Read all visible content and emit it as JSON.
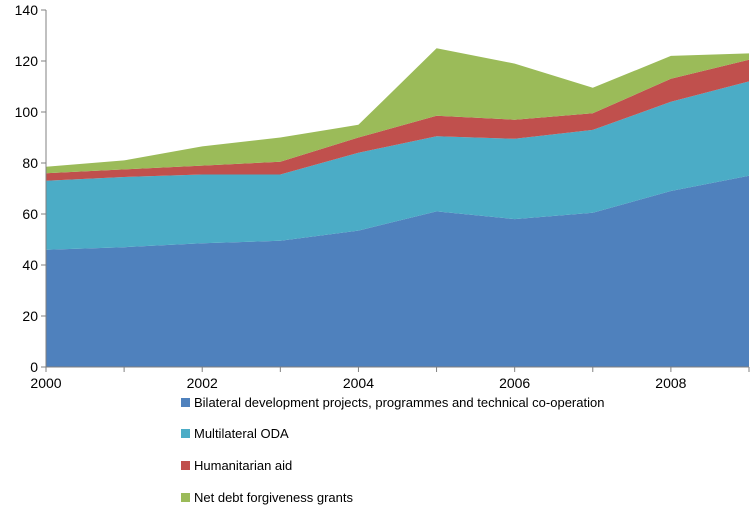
{
  "chart_data": {
    "type": "area",
    "stacked": true,
    "x": [
      2000,
      2001,
      2002,
      2003,
      2004,
      2005,
      2006,
      2007,
      2008,
      2009
    ],
    "xticks": [
      "2000",
      "2002",
      "2004",
      "2006",
      "2008"
    ],
    "xlim": [
      2000,
      2009
    ],
    "ylim": [
      0,
      140
    ],
    "yticks": [
      "0",
      "20",
      "40",
      "60",
      "80",
      "100",
      "120",
      "140"
    ],
    "grid": false,
    "legend_position": "bottom",
    "series": [
      {
        "name": "Bilateral development projects, programmes and technical co-operation",
        "color": "#4f81bd",
        "values": [
          46,
          47,
          48.5,
          49.5,
          53.5,
          61,
          58,
          60.5,
          69,
          75
        ]
      },
      {
        "name": "Multilateral ODA",
        "color": "#4bacc6",
        "values": [
          27,
          27.5,
          27,
          26,
          30.5,
          29.5,
          31.5,
          32.5,
          35,
          37
        ]
      },
      {
        "name": "Humanitarian aid",
        "color": "#c0504d",
        "values": [
          3,
          3,
          3.5,
          5,
          6,
          8,
          7.5,
          6.5,
          9,
          8.5
        ]
      },
      {
        "name": "Net debt forgiveness grants",
        "color": "#9bbb59",
        "values": [
          2.5,
          3.5,
          7.5,
          9.5,
          5,
          26.5,
          22,
          10,
          9,
          2.5
        ]
      }
    ]
  }
}
